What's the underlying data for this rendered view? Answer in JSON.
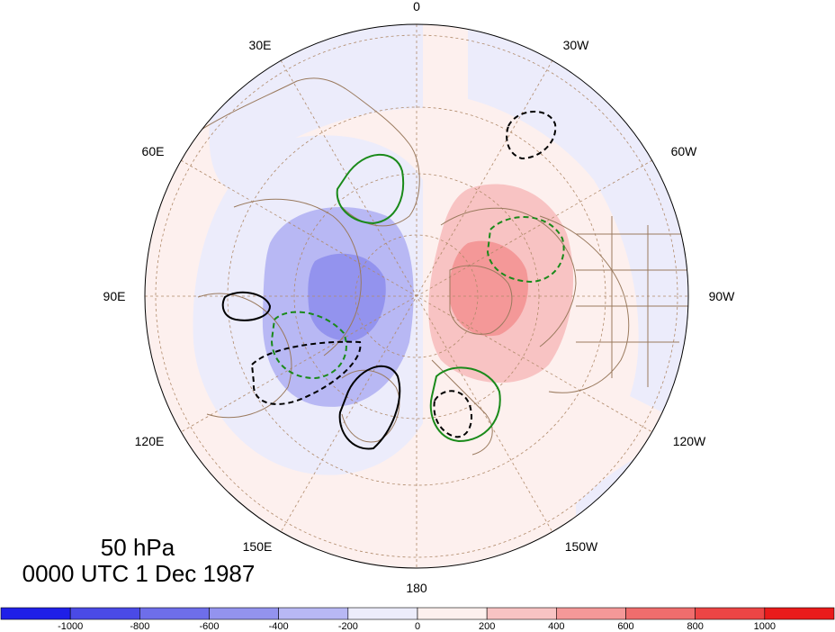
{
  "map": {
    "level_label": "50 hPa",
    "time_label": "0000 UTC 1 Dec 1987",
    "longitude_labels": [
      "0",
      "30W",
      "60W",
      "90W",
      "120W",
      "150W",
      "180",
      "150E",
      "120E",
      "90E",
      "60E",
      "30E"
    ],
    "colors": {
      "land_outline": "#9a7a5e",
      "graticule": "#b08a6a",
      "positive_contour": "#000000",
      "negative_contour": "#1a8a1a"
    },
    "anomaly_regions": [
      {
        "name": "negative-anomaly-center-eurasia",
        "level": "-200 to -600"
      },
      {
        "name": "positive-anomaly-center-canada",
        "level": "200 to 600"
      }
    ]
  },
  "colorbar": {
    "colors": [
      "#1f1fe8",
      "#4a4ae6",
      "#6e6eea",
      "#9393ee",
      "#b8b8f4",
      "#ececfb",
      "#fdf0ee",
      "#f8c3c3",
      "#f49898",
      "#ef6d6d",
      "#ec4545",
      "#ea1b1b"
    ],
    "tick_labels": [
      "-1000",
      "-800",
      "-600",
      "-400",
      "-200",
      "0",
      "200",
      "400",
      "600",
      "800",
      "1000"
    ]
  }
}
